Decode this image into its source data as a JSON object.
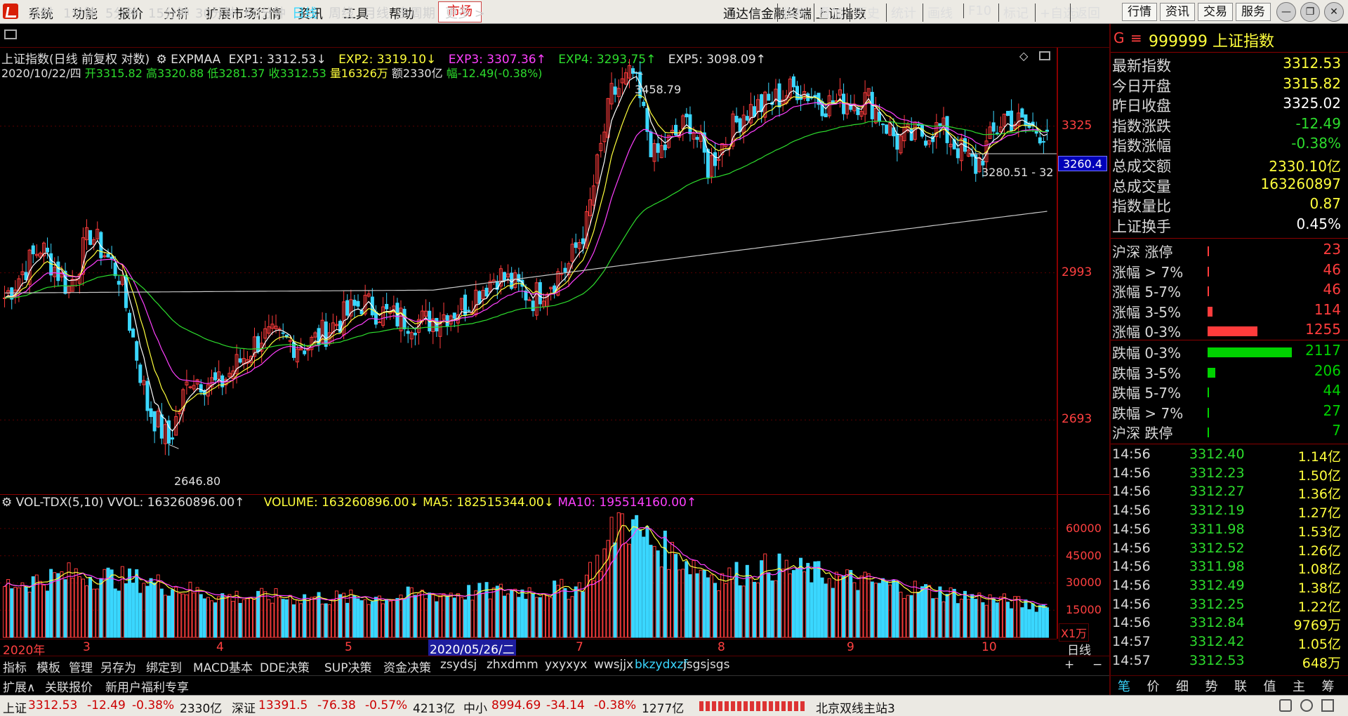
{
  "menu": [
    "系统",
    "功能",
    "报价",
    "分析",
    "扩展市场行情",
    "资讯",
    "工具",
    "帮助"
  ],
  "menu_market": "市场",
  "window_title": "通达信金融终端 上证指数",
  "top_buttons": [
    "行情",
    "资讯",
    "交易",
    "服务"
  ],
  "window_controls": [
    "—",
    "❐",
    "✕"
  ],
  "periods": [
    "分时",
    "1分钟",
    "5分钟",
    "15分钟",
    "30分钟",
    "60分钟",
    "日线",
    "周线",
    "月线",
    "多周期",
    "更多 >"
  ],
  "active_period": "日线",
  "chart_tools": [
    "指标",
    "叠加",
    "历史",
    "统计",
    "画线",
    "F10",
    "标记",
    "+自选",
    "返回"
  ],
  "info1": {
    "name": "上证指数(日线 前复权 对数)",
    "indicator": "EXPMAA",
    "exp1": "EXP1: 3312.53↓",
    "exp2": "EXP2: 3319.10↓",
    "exp3": "EXP3: 3307.36↑",
    "exp4": "EXP4: 3293.75↑",
    "exp5": "EXP5: 3098.09↑"
  },
  "info2": {
    "date": "2020/10/22/四",
    "open_lbl": "开",
    "open": "3315.82",
    "high_lbl": "高",
    "high": "3320.88",
    "low_lbl": "低",
    "low": "3281.37",
    "close_lbl": "收",
    "close": "3312.53",
    "vol_lbl": "量",
    "vol": "16326万",
    "amt_lbl": "额",
    "amt": "2330亿",
    "chg_lbl": "幅",
    "chg": "-12.49(-0.38%)"
  },
  "price_axis": [
    "3325",
    "2993",
    "2693"
  ],
  "current_tag": "3260.4",
  "annotations": {
    "high": "3458.79",
    "low": "2646.80",
    "range": "3280.51 - 32"
  },
  "vol_info": {
    "name": "VOL-TDX(5,10)",
    "vvol": "VVOL: 163260896.00↑",
    "volume": "VOLUME: 163260896.00↓",
    "ma5": "MA5: 182515344.00↓",
    "ma10": "MA10: 195514160.00↑"
  },
  "vol_axis": [
    "60000",
    "45000",
    "30000",
    "15000"
  ],
  "vol_unit": "X1万",
  "date_axis": [
    "2020年",
    "3",
    "4",
    "5",
    "7",
    "8",
    "9",
    "10"
  ],
  "selected_date": "2020/05/26/二",
  "chart_period_label": "日线",
  "tabs_row1": [
    "指标",
    "模板",
    "管理",
    "另存为",
    "绑定到",
    "MACD基本",
    "DDE决策",
    "SUP决策",
    "资金决策",
    "zsydsj",
    "zhxdmm",
    "yxyxyx",
    "wwsjjx",
    "bkzydxzf",
    "jsgsjsgs"
  ],
  "tabs_row1_active": "bkzydxzf",
  "tabs_row1_right": [
    "+",
    "−"
  ],
  "tabs_row2": [
    "扩展∧",
    "关联报价",
    "新用户福利专享"
  ],
  "status_bar": {
    "sh_name": "上证",
    "sh_val": "3312.53",
    "sh_chg": "-12.49",
    "sh_pct": "-0.38%",
    "sh_amt": "2330亿",
    "sz_name": "深证",
    "sz_val": "13391.5",
    "sz_chg": "-76.38",
    "sz_pct": "-0.57%",
    "sz_amt": "4213亿",
    "zx_name": "中小",
    "zx_val": "8994.69",
    "zx_chg": "-34.14",
    "zx_pct": "-0.38%",
    "zx_amt": "1277亿",
    "server": "北京双线主站3"
  },
  "sidebar": {
    "g": "G",
    "menu_icon": "≡",
    "code_name": "999999 上证指数",
    "quote": [
      {
        "label": "最新指数",
        "value": "3312.53",
        "color": "#ffff3c"
      },
      {
        "label": "今日开盘",
        "value": "3315.82",
        "color": "#ffff3c"
      },
      {
        "label": "昨日收盘",
        "value": "3325.02",
        "color": "#ffffff"
      },
      {
        "label": "指数涨跌",
        "value": "-12.49",
        "color": "#2ddc2d"
      },
      {
        "label": "指数涨幅",
        "value": "-0.38%",
        "color": "#2ddc2d"
      },
      {
        "label": "总成交额",
        "value": "2330.10亿",
        "color": "#ffff3c"
      },
      {
        "label": "总成交量",
        "value": "163260897",
        "color": "#ffff3c"
      },
      {
        "label": "指数量比",
        "value": "0.87",
        "color": "#ffff3c"
      },
      {
        "label": "上证换手",
        "value": "0.45%",
        "color": "#ffffff"
      }
    ],
    "breadth_up": [
      {
        "label": "沪深 涨停",
        "value": "23",
        "frac": 0.01
      },
      {
        "label": "涨幅 > 7%",
        "value": "46",
        "frac": 0.01
      },
      {
        "label": "涨幅 5-7%",
        "value": "46",
        "frac": 0.01
      },
      {
        "label": "涨幅 3-5%",
        "value": "114",
        "frac": 0.06
      },
      {
        "label": "涨幅 0-3%",
        "value": "1255",
        "frac": 0.59
      }
    ],
    "breadth_down": [
      {
        "label": "跌幅 0-3%",
        "value": "2117",
        "frac": 1.0
      },
      {
        "label": "跌幅 3-5%",
        "value": "206",
        "frac": 0.09
      },
      {
        "label": "跌幅 5-7%",
        "value": "44",
        "frac": 0.01
      },
      {
        "label": "跌幅 > 7%",
        "value": "27",
        "frac": 0.01
      },
      {
        "label": "沪深 跌停",
        "value": "7",
        "frac": 0.01
      }
    ],
    "up_color": "#ff3c3c",
    "down_color": "#00d200",
    "ticks": [
      {
        "t": "14:56",
        "p": "3312.40",
        "v": "1.14亿"
      },
      {
        "t": "14:56",
        "p": "3312.23",
        "v": "1.50亿"
      },
      {
        "t": "14:56",
        "p": "3312.27",
        "v": "1.36亿"
      },
      {
        "t": "14:56",
        "p": "3312.19",
        "v": "1.27亿"
      },
      {
        "t": "14:56",
        "p": "3311.98",
        "v": "1.53亿"
      },
      {
        "t": "14:56",
        "p": "3312.52",
        "v": "1.26亿"
      },
      {
        "t": "14:56",
        "p": "3311.98",
        "v": "1.08亿"
      },
      {
        "t": "14:56",
        "p": "3312.49",
        "v": "1.38亿"
      },
      {
        "t": "14:56",
        "p": "3312.25",
        "v": "1.22亿"
      },
      {
        "t": "14:56",
        "p": "3312.84",
        "v": "9769万"
      },
      {
        "t": "14:57",
        "p": "3312.42",
        "v": "1.05亿"
      },
      {
        "t": "14:57",
        "p": "3312.53",
        "v": "648万"
      }
    ],
    "bottom_tabs": [
      "笔",
      "价",
      "细",
      "势",
      "联",
      "值",
      "主",
      "筹"
    ],
    "bottom_active": "笔"
  },
  "colors": {
    "up": "#ff3c3c",
    "down": "#3ad7ff",
    "exp1": "#ffffff",
    "exp2": "#ffff3c",
    "exp3": "#ff40ff",
    "exp4": "#2ddc2d",
    "exp5": "#c8c8c8",
    "grid": "#5a0000"
  },
  "chart_data": {
    "type": "candlestick",
    "title": "上证指数(日线 前复权 对数)",
    "scale": "log",
    "ylim": [
      2600,
      3500
    ],
    "x_start": "2020年",
    "anchors": [
      {
        "i": 0,
        "v": 2940
      },
      {
        "i": 10,
        "v": 3050
      },
      {
        "i": 18,
        "v": 2960
      },
      {
        "i": 24,
        "v": 3080
      },
      {
        "i": 32,
        "v": 2990
      },
      {
        "i": 40,
        "v": 2720
      },
      {
        "i": 46,
        "v": 2650
      },
      {
        "i": 52,
        "v": 2780
      },
      {
        "i": 60,
        "v": 2760
      },
      {
        "i": 72,
        "v": 2860
      },
      {
        "i": 85,
        "v": 2840
      },
      {
        "i": 100,
        "v": 2930
      },
      {
        "i": 108,
        "v": 2900
      },
      {
        "i": 118,
        "v": 2890
      },
      {
        "i": 128,
        "v": 2920
      },
      {
        "i": 138,
        "v": 2990
      },
      {
        "i": 148,
        "v": 2940
      },
      {
        "i": 158,
        "v": 3010
      },
      {
        "i": 163,
        "v": 3100
      },
      {
        "i": 170,
        "v": 3400
      },
      {
        "i": 176,
        "v": 3450
      },
      {
        "i": 182,
        "v": 3250
      },
      {
        "i": 192,
        "v": 3340
      },
      {
        "i": 197,
        "v": 3230
      },
      {
        "i": 207,
        "v": 3360
      },
      {
        "i": 214,
        "v": 3380
      },
      {
        "i": 222,
        "v": 3420
      },
      {
        "i": 230,
        "v": 3380
      },
      {
        "i": 242,
        "v": 3390
      },
      {
        "i": 250,
        "v": 3290
      },
      {
        "i": 262,
        "v": 3320
      },
      {
        "i": 272,
        "v": 3230
      },
      {
        "i": 280,
        "v": 3350
      },
      {
        "i": 287,
        "v": 3320
      },
      {
        "i": 292,
        "v": 3312
      }
    ],
    "volume_anchors": [
      {
        "i": 0,
        "v": 28000
      },
      {
        "i": 20,
        "v": 34000
      },
      {
        "i": 40,
        "v": 30000
      },
      {
        "i": 60,
        "v": 22000
      },
      {
        "i": 100,
        "v": 21000
      },
      {
        "i": 130,
        "v": 24000
      },
      {
        "i": 160,
        "v": 26000
      },
      {
        "i": 168,
        "v": 45000
      },
      {
        "i": 172,
        "v": 64000
      },
      {
        "i": 182,
        "v": 50000
      },
      {
        "i": 200,
        "v": 32000
      },
      {
        "i": 215,
        "v": 38000
      },
      {
        "i": 240,
        "v": 30000
      },
      {
        "i": 270,
        "v": 22000
      },
      {
        "i": 292,
        "v": 16300
      }
    ],
    "volume_ylim": [
      0,
      65000
    ],
    "volume_ma10_end": 19551
  }
}
